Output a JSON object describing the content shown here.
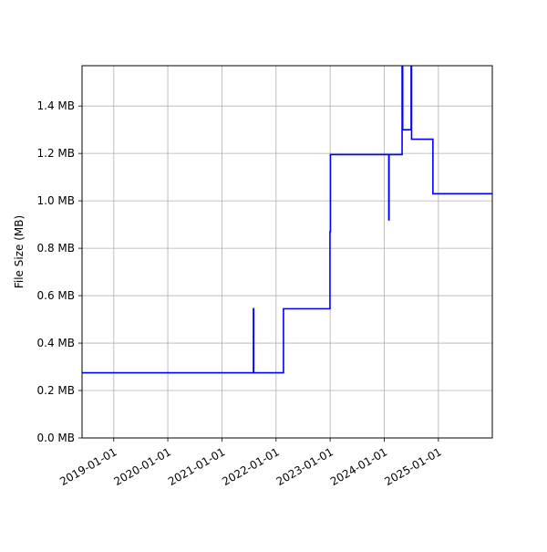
{
  "chart_data": {
    "type": "line",
    "title": "",
    "xlabel": "",
    "ylabel": "File Size (MB)",
    "grid": true,
    "legend": "none",
    "series_color": "#0000ff",
    "xlim": [
      "2018-06-01",
      "2025-12-31"
    ],
    "ylim": [
      0,
      1.57
    ],
    "x_ticks": [
      "2019-01-01",
      "2020-01-01",
      "2021-01-01",
      "2022-01-01",
      "2023-01-01",
      "2024-01-01",
      "2025-01-01"
    ],
    "y_ticks": [
      0.0,
      0.2,
      0.4,
      0.6,
      0.8,
      1.0,
      1.2,
      1.4
    ],
    "y_tick_labels": [
      "0.0 MB",
      "0.2 MB",
      "0.4 MB",
      "0.6 MB",
      "0.8 MB",
      "1.0 MB",
      "1.2 MB",
      "1.4 MB"
    ],
    "series": [
      {
        "x": [
          "2018-06-01",
          "2021-08-01",
          "2021-08-01",
          "2021-08-03",
          "2021-08-03",
          "2022-02-20",
          "2022-02-20",
          "2022-12-31",
          "2022-12-31",
          "2023-01-03",
          "2023-01-03",
          "2024-02-01",
          "2024-02-01",
          "2024-02-03",
          "2024-02-03",
          "2024-05-01",
          "2024-05-01",
          "2024-05-05",
          "2024-05-05",
          "2024-07-01",
          "2024-07-01",
          "2024-07-04",
          "2024-07-04",
          "2024-11-25",
          "2024-11-25",
          "2025-12-31"
        ],
        "y": [
          0.275,
          0.275,
          0.545,
          0.545,
          0.275,
          0.275,
          0.545,
          0.545,
          0.87,
          0.87,
          1.195,
          1.195,
          0.92,
          0.92,
          1.195,
          1.195,
          1.57,
          1.57,
          1.3,
          1.3,
          1.57,
          1.57,
          1.26,
          1.26,
          1.03,
          1.03
        ]
      }
    ]
  }
}
